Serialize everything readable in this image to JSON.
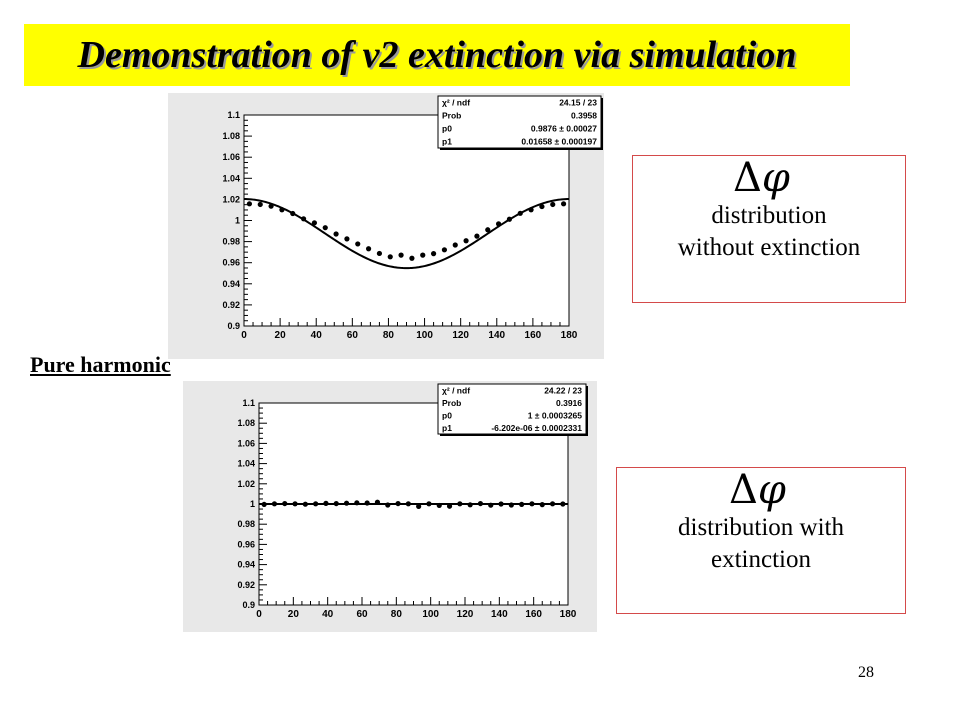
{
  "title": "Demonstration of v2 extinction via simulation",
  "side_label": "Pure harmonic",
  "page_number": "28",
  "notes": [
    {
      "symbol_delta": "Δ",
      "symbol_phi": "φ",
      "line1": "distribution",
      "line2": "without extinction"
    },
    {
      "symbol_delta": "Δ",
      "symbol_phi": "φ",
      "line1": "distribution with",
      "line2": "extinction"
    }
  ],
  "colors": {
    "title_bg": "#ffff00",
    "note_border": "#d44a4a",
    "panel_bg": "#e8e8e8"
  },
  "chart_data": [
    {
      "type": "scatter",
      "title": "",
      "xlabel": "",
      "ylabel": "",
      "xlim": [
        0,
        180
      ],
      "ylim": [
        0.9,
        1.1
      ],
      "x_ticks": [
        "0",
        "20",
        "40",
        "60",
        "80",
        "100",
        "120",
        "140",
        "160",
        "180"
      ],
      "y_ticks": [
        "0.9",
        "0.92",
        "0.94",
        "0.96",
        "0.98",
        "1",
        "1.02",
        "1.04",
        "1.06",
        "1.08",
        "1.1"
      ],
      "points": {
        "x": [
          3,
          9,
          15,
          21,
          27,
          33,
          39,
          45,
          51,
          57,
          63,
          69,
          75,
          81,
          87,
          93,
          99,
          105,
          111,
          117,
          123,
          129,
          135,
          141,
          147,
          153,
          159,
          165,
          171,
          177
        ],
        "y": [
          1.0158,
          1.0152,
          1.0136,
          1.0102,
          1.0066,
          1.0016,
          0.9978,
          0.9932,
          0.9872,
          0.9826,
          0.9778,
          0.9732,
          0.9688,
          0.9656,
          0.9672,
          0.9642,
          0.9672,
          0.9686,
          0.9722,
          0.9768,
          0.9808,
          0.9852,
          0.9912,
          0.9968,
          1.0012,
          1.0068,
          1.0102,
          1.0132,
          1.0152,
          1.0158
        ]
      },
      "fit": {
        "p0": 0.9876,
        "p1": 0.01658
      },
      "stats": [
        {
          "label": "χ² / ndf",
          "value": "24.15 / 23"
        },
        {
          "label": "Prob",
          "value": "0.3958"
        },
        {
          "label": "p0",
          "value": "0.9876 ± 0.00027"
        },
        {
          "label": "p1",
          "value": "0.01658 ± 0.000197"
        }
      ]
    },
    {
      "type": "scatter",
      "title": "",
      "xlabel": "",
      "ylabel": "",
      "xlim": [
        0,
        180
      ],
      "ylim": [
        0.9,
        1.1
      ],
      "x_ticks": [
        "0",
        "20",
        "40",
        "60",
        "80",
        "100",
        "120",
        "140",
        "160",
        "180"
      ],
      "y_ticks": [
        "0.9",
        "0.92",
        "0.94",
        "0.96",
        "0.98",
        "1",
        "1.02",
        "1.04",
        "1.06",
        "1.08",
        "1.1"
      ],
      "points": {
        "x": [
          3,
          9,
          15,
          21,
          27,
          33,
          39,
          45,
          51,
          57,
          63,
          69,
          75,
          81,
          87,
          93,
          99,
          105,
          111,
          117,
          123,
          129,
          135,
          141,
          147,
          153,
          159,
          165,
          171,
          177
        ],
        "y": [
          0.9996,
          1.0002,
          1.0004,
          1.0002,
          0.9998,
          1.0002,
          1.0006,
          1.0004,
          1.0008,
          1.0012,
          1.001,
          1.0018,
          0.999,
          1.0004,
          1.0002,
          0.9976,
          1.0002,
          0.9986,
          0.9978,
          1.0002,
          0.9992,
          1.0004,
          0.9988,
          1.0,
          0.999,
          0.9996,
          1.0002,
          0.9994,
          1.0002,
          1.0
        ]
      },
      "fit": {
        "p0": 1.0,
        "p1": -6.202e-06
      },
      "stats": [
        {
          "label": "χ² / ndf",
          "value": "24.22 / 23"
        },
        {
          "label": "Prob",
          "value": "0.3916"
        },
        {
          "label": "p0",
          "value": "1 ± 0.0003265"
        },
        {
          "label": "p1",
          "value": "-6.202e-06 ± 0.0002331"
        }
      ]
    }
  ]
}
